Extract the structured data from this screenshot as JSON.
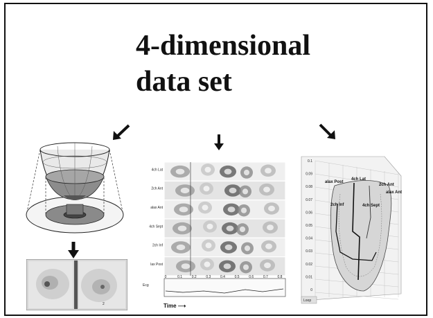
{
  "title": {
    "line1": "4-dimensional",
    "line2": "data set"
  },
  "icons": [
    "arrow-down-left-icon",
    "arrow-down-icon",
    "arrow-down-right-icon",
    "arrow-down-bold-icon"
  ],
  "center_plot": {
    "rows": [
      "4ch Lat",
      "2ch Ant",
      "alax Ant",
      "4ch Sept",
      "2ch Inf",
      "lax Post"
    ],
    "x_ticks": [
      "0",
      "0.1",
      "0.2",
      "0.3",
      "0.4",
      "0.5",
      "0.6",
      "0.7",
      "0.8"
    ],
    "lower_label": "Ecg",
    "time_label": "Time ⟶"
  },
  "right_plot": {
    "y_ticks": [
      "0.1",
      "0.09",
      "0.08",
      "0.07",
      "0.06",
      "0.05",
      "0.04",
      "0.03",
      "0.02",
      "0.01",
      "0"
    ],
    "labels": [
      "alax Post",
      "4ch Lat",
      "2ch Ant",
      "alax Ant",
      "2ch Inf",
      "4ch Sept"
    ],
    "footer": "Loop"
  }
}
